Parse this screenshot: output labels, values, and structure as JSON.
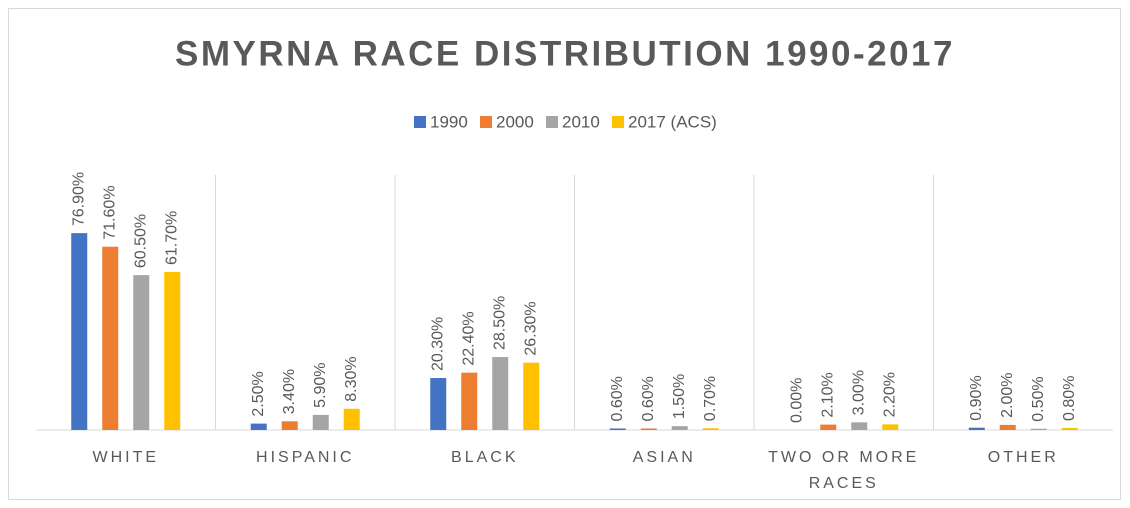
{
  "chart_data": {
    "type": "bar",
    "title": "SMYRNA RACE DISTRIBUTION 1990-2017",
    "categories": [
      "WHITE",
      "HISPANIC",
      "BLACK",
      "ASIAN",
      "TWO OR MORE RACES",
      "OTHER"
    ],
    "series": [
      {
        "name": "1990",
        "color": "#4472c4",
        "values": [
          76.9,
          2.5,
          20.3,
          0.6,
          0,
          0.9
        ],
        "value_labels": [
          "76.90%",
          "2.50%",
          "20.30%",
          "0.60%",
          "0.00%",
          "0.90%"
        ]
      },
      {
        "name": "2000",
        "color": "#ed7d31",
        "values": [
          71.6,
          3.4,
          22.4,
          0.6,
          2.1,
          2.0
        ],
        "value_labels": [
          "71.60%",
          "3.40%",
          "22.40%",
          "0.60%",
          "2.10%",
          "2.00%"
        ]
      },
      {
        "name": "2010",
        "color": "#a5a5a5",
        "values": [
          60.5,
          5.9,
          28.5,
          1.5,
          3.0,
          0.5
        ],
        "value_labels": [
          "60.50%",
          "5.90%",
          "28.50%",
          "1.50%",
          "3.00%",
          "0.50%"
        ]
      },
      {
        "name": "2017 (ACS)",
        "color": "#ffc000",
        "values": [
          61.7,
          8.3,
          26.3,
          0.7,
          2.2,
          0.8
        ],
        "value_labels": [
          "61.70%",
          "8.30%",
          "26.30%",
          "0.70%",
          "2.20%",
          "0.80%"
        ]
      }
    ],
    "legend": "top"
  }
}
